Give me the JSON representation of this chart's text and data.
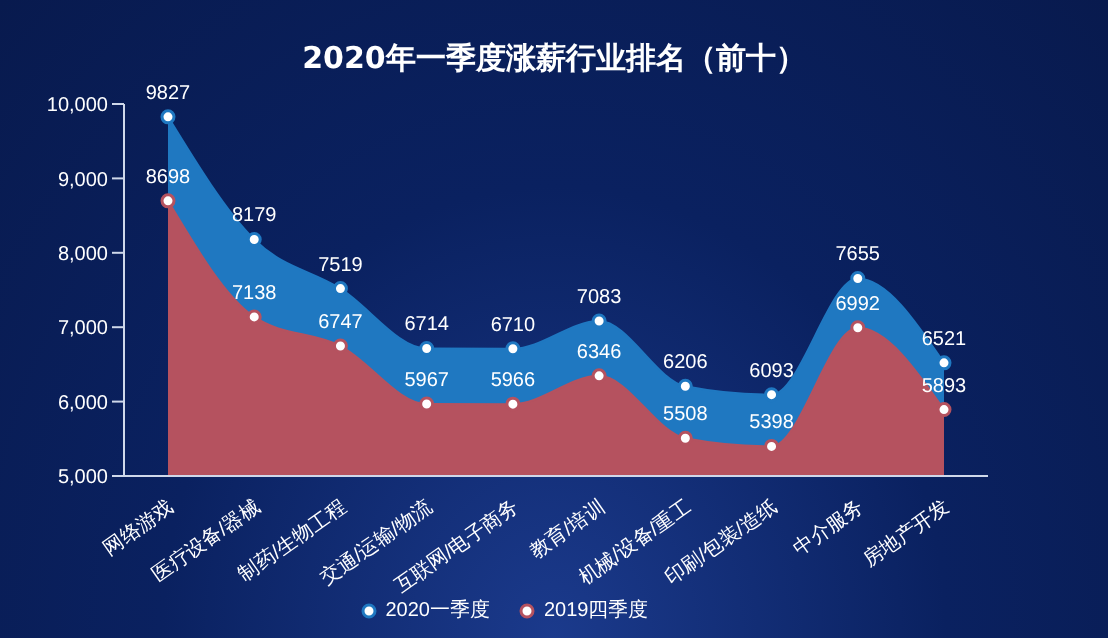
{
  "chart_data": {
    "type": "area",
    "title": "2020年一季度涨薪行业排名（前十）",
    "categories": [
      "网络游戏",
      "医疗设备/器械",
      "制药/生物工程",
      "交通/运输/物流",
      "互联网/电子商务",
      "教育/培训",
      "机械/设备/重工",
      "印刷/包装/造纸",
      "中介服务",
      "房地产开发"
    ],
    "series": [
      {
        "name": "2020一季度",
        "color": "#1f78c1",
        "values": [
          9827,
          8179,
          7519,
          6714,
          6710,
          7083,
          6206,
          6093,
          7655,
          6521
        ]
      },
      {
        "name": "2019四季度",
        "color": "#b5525f",
        "values": [
          8698,
          7138,
          6747,
          5967,
          5966,
          6346,
          5508,
          5398,
          6992,
          5893
        ]
      }
    ],
    "ylim": [
      5000,
      10000
    ],
    "yticks": [
      {
        "value": 5000,
        "label": "5,000"
      },
      {
        "value": 6000,
        "label": "6,000"
      },
      {
        "value": 7000,
        "label": "7,000"
      },
      {
        "value": 8000,
        "label": "8,000"
      },
      {
        "value": 9000,
        "label": "9,000"
      },
      {
        "value": 10000,
        "label": "10,000"
      }
    ],
    "data_labels": true,
    "legend": "bottom",
    "grid": false,
    "marker": "circle"
  }
}
